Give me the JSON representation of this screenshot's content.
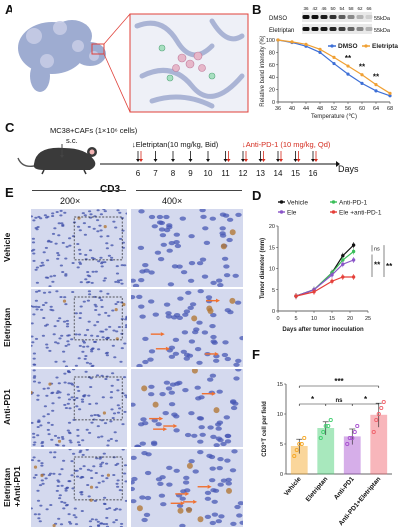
{
  "panels": {
    "A": "A",
    "B": "B",
    "C": "C",
    "D": "D",
    "E": "E",
    "F": "F"
  },
  "panelB": {
    "blot_temps": [
      "36",
      "42",
      "46",
      "50",
      "54",
      "58",
      "62",
      "66"
    ],
    "blot_rows": [
      "DMSO",
      "Eletriptan"
    ],
    "blot_kda": "55kDa",
    "chart_data": {
      "type": "line",
      "x": [
        36,
        40,
        44,
        48,
        52,
        56,
        60,
        64,
        68
      ],
      "series": [
        {
          "name": "DMSO",
          "color": "#3d6fd6",
          "values": [
            100,
            96,
            90,
            80,
            62,
            45,
            30,
            18,
            10
          ]
        },
        {
          "name": "Eletriptan",
          "color": "#f0a033",
          "values": [
            100,
            97,
            93,
            85,
            72,
            58,
            44,
            28,
            14
          ]
        }
      ],
      "stars": [
        "**",
        "**",
        "**"
      ],
      "xlabel": "Temperature (℃)",
      "ylabel": "Relative band intensity (%)",
      "xlim": [
        36,
        68
      ],
      "ylim": [
        0,
        100
      ],
      "xticks": [
        "36",
        "40",
        "44",
        "48",
        "52",
        "56",
        "60",
        "64",
        "68"
      ],
      "yticks": [
        "0",
        "20",
        "40",
        "60",
        "80",
        "100"
      ]
    }
  },
  "panelC": {
    "cells": "MC38+CAFs (1×10⁶ cells)",
    "route": "s.c.",
    "ele": "↓Eletriptan(10 mg/kg, Bid)",
    "pd1": "↓Anti-PD-1 (10 mg/kg, Qd)",
    "days": [
      "6",
      "7",
      "8",
      "9",
      "10",
      "11",
      "12",
      "13",
      "14",
      "15",
      "16"
    ],
    "days_label": "Days"
  },
  "panelE": {
    "title": "CD3",
    "mags": [
      "200×",
      "400×"
    ],
    "rows": [
      "Vehicle",
      "Eletriptan",
      "Anti-PD1",
      "Eletriptan\n+Anti-PD1"
    ]
  },
  "panelD": {
    "chart_data": {
      "type": "line",
      "x": [
        5,
        10,
        15,
        18,
        21
      ],
      "series": [
        {
          "name": "Vehicle",
          "color": "#111111",
          "values": [
            3.5,
            5,
            9,
            13,
            15.5
          ]
        },
        {
          "name": "Anti-PD-1",
          "color": "#3bbf5a",
          "values": [
            3.5,
            5,
            9,
            12,
            14
          ]
        },
        {
          "name": "Ele",
          "color": "#8a55c8",
          "values": [
            3.5,
            5,
            8.5,
            11,
            12
          ]
        },
        {
          "name": "Ele +anti-PD-1",
          "color": "#e5403a",
          "values": [
            3.5,
            4.5,
            7,
            8,
            8
          ]
        }
      ],
      "xlabel": "Days after tumor inoculation",
      "ylabel": "Tumor diameter (mm)",
      "xlim": [
        0,
        25
      ],
      "ylim": [
        0,
        20
      ],
      "xticks": [
        "0",
        "5",
        "10",
        "15",
        "20",
        "25"
      ],
      "yticks": [
        "0",
        "5",
        "10",
        "15",
        "20"
      ],
      "sig": [
        "ns",
        "**",
        "**"
      ]
    }
  },
  "panelF": {
    "chart_data": {
      "type": "bar",
      "categories": [
        "Vehicle",
        "Eletriptan",
        "Anti-PD1",
        "Anti-PD1+Eletriptan"
      ],
      "values": [
        4.6,
        7.6,
        6.2,
        9.8
      ],
      "errors": [
        1.2,
        1.1,
        1.3,
        2.0
      ],
      "colors": [
        "#f5a623",
        "#3fce6e",
        "#a64ecf",
        "#f0606a"
      ],
      "points": [
        [
          3,
          4,
          5,
          5,
          6
        ],
        [
          6,
          7,
          8,
          8,
          9
        ],
        [
          5,
          6,
          6,
          7,
          8
        ],
        [
          7,
          9,
          10,
          11,
          12
        ]
      ],
      "ylabel": "CD3⁺T cell per field",
      "ylim": [
        0,
        15
      ],
      "yticks": [
        "0",
        "5",
        "10",
        "15"
      ],
      "sig": [
        "*",
        "ns",
        "*",
        "***"
      ]
    }
  }
}
